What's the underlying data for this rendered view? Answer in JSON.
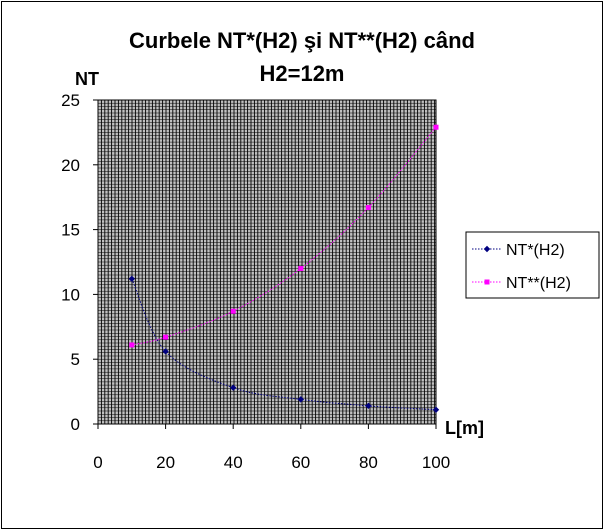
{
  "chart_data": {
    "type": "line",
    "title": "Curbele NT*(H2) şi NT**(H2) când",
    "subtitle": "H2=12m",
    "xlabel": "L[m]",
    "ylabel": "NT",
    "xlim": [
      0,
      100
    ],
    "ylim": [
      0,
      25
    ],
    "x_ticks": [
      "0",
      "20",
      "40",
      "60",
      "80",
      "100"
    ],
    "y_ticks": [
      "0",
      "5",
      "10",
      "15",
      "20",
      "25"
    ],
    "grid": "on",
    "legend_position": "right",
    "x": [
      10,
      20,
      40,
      60,
      80,
      100
    ],
    "series": [
      {
        "name": "NT*(H2)",
        "color": "#000080",
        "marker": "diamond",
        "values": [
          11.2,
          5.6,
          2.8,
          1.9,
          1.4,
          1.1
        ]
      },
      {
        "name": "NT**(H2)",
        "color": "#FF00FF",
        "marker": "square",
        "values": [
          6.1,
          6.7,
          8.7,
          12.0,
          16.7,
          22.9
        ]
      }
    ]
  }
}
